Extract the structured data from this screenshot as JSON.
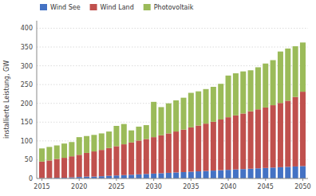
{
  "chart_data": {
    "type": "bar",
    "stacked": true,
    "ylabel": "installierte Leistung, GW",
    "x": [
      2015,
      2016,
      2017,
      2018,
      2019,
      2020,
      2021,
      2022,
      2023,
      2024,
      2025,
      2026,
      2027,
      2028,
      2029,
      2030,
      2031,
      2032,
      2033,
      2034,
      2035,
      2036,
      2037,
      2038,
      2039,
      2040,
      2041,
      2042,
      2043,
      2044,
      2045,
      2046,
      2047,
      2048,
      2049,
      2050
    ],
    "series": [
      {
        "name": "Wind See",
        "color": "#4472C4",
        "values": [
          1,
          1,
          2,
          2,
          3,
          4,
          5,
          5,
          6,
          7,
          8,
          9,
          10,
          11,
          12,
          13,
          14,
          15,
          16,
          17,
          18,
          19,
          20,
          21,
          22,
          23,
          24,
          25,
          26,
          27,
          28,
          29,
          30,
          31,
          32,
          33
        ]
      },
      {
        "name": "Wind Land",
        "color": "#C0504D",
        "values": [
          44,
          47,
          50,
          53,
          56,
          59,
          63,
          67,
          70,
          74,
          78,
          82,
          86,
          90,
          93,
          97,
          101,
          105,
          109,
          113,
          118,
          122,
          126,
          130,
          135,
          140,
          144,
          148,
          153,
          157,
          161,
          166,
          171,
          176,
          185,
          198
        ]
      },
      {
        "name": "Photovoltaik",
        "color": "#9BBB59",
        "values": [
          35,
          36,
          36,
          38,
          38,
          47,
          45,
          44,
          44,
          44,
          54,
          54,
          32,
          37,
          37,
          94,
          75,
          80,
          83,
          85,
          92,
          91,
          92,
          93,
          95,
          111,
          112,
          112,
          109,
          112,
          117,
          120,
          137,
          139,
          135,
          131
        ]
      }
    ],
    "xlim": [
      2014.3,
      2050.7
    ],
    "xticks": [
      2015,
      2020,
      2025,
      2030,
      2035,
      2040,
      2045,
      2050
    ],
    "ylim": [
      0,
      420
    ],
    "yticks": [
      0,
      50,
      100,
      150,
      200,
      250,
      300,
      350,
      400
    ],
    "grid": true,
    "legend": "upper left"
  }
}
